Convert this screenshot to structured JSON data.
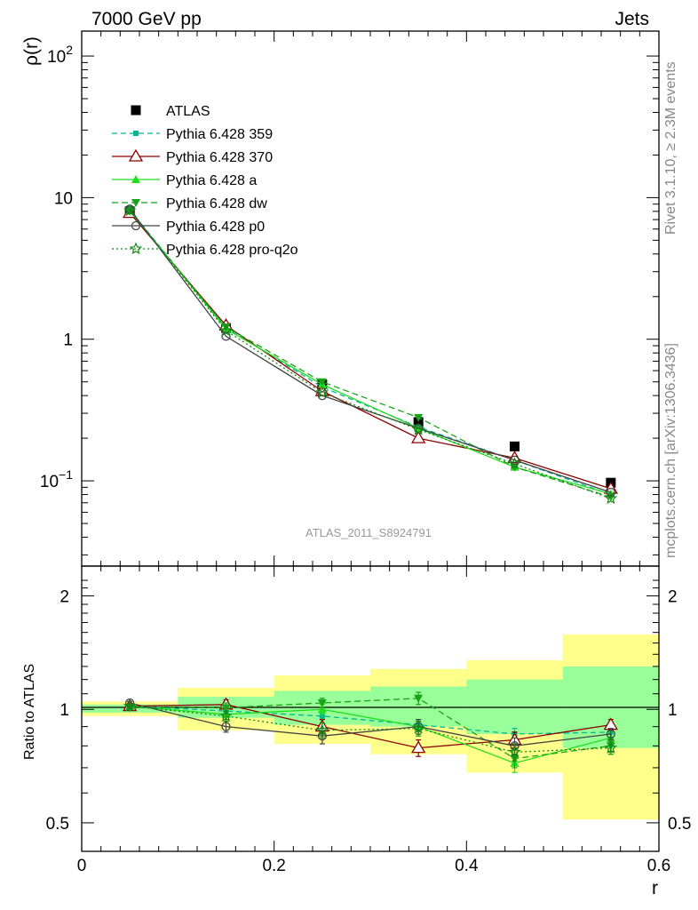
{
  "header": {
    "left": "7000 GeV pp",
    "right": "Jets"
  },
  "side_labels": {
    "rivet": "Rivet 3.1.10, ≥ 2.3M events",
    "mcplots": "mcplots.cern.ch [arXiv:1306.3436]"
  },
  "watermark": "ATLAS_2011_S8924791",
  "colors": {
    "atlas": "#000000",
    "p359": "#00b894",
    "p370": "#8b0000",
    "pa": "#22dd22",
    "pdw": "#1aa31a",
    "pp0": "#444444",
    "pq2o": "#108a10",
    "band_yellow": "#ffff8c",
    "band_green": "#99ff99"
  },
  "chart_data": [
    {
      "type": "line",
      "panel": "main",
      "ylabel": "ρ(r)",
      "yscale": "log",
      "xlim": [
        0,
        0.6
      ],
      "ylim": [
        0.025,
        150
      ],
      "y_ticks": [
        {
          "value": 100,
          "base": "10",
          "exp": "2"
        },
        {
          "value": 10,
          "base": "10",
          "exp": ""
        },
        {
          "value": 1,
          "base": "1",
          "exp": ""
        },
        {
          "value": 0.1,
          "base": "10",
          "exp": "−1"
        }
      ],
      "x": [
        0.05,
        0.15,
        0.25,
        0.35,
        0.45,
        0.55
      ],
      "series": [
        {
          "name": "ATLAS",
          "key": "atlas",
          "values": [
            8.0,
            1.2,
            0.48,
            0.26,
            0.175,
            0.097
          ]
        },
        {
          "name": "Pythia 6.428 359",
          "key": "p359",
          "values": [
            8.2,
            1.2,
            0.46,
            0.24,
            0.14,
            0.08
          ]
        },
        {
          "name": "Pythia 6.428 370",
          "key": "p370",
          "values": [
            7.8,
            1.25,
            0.43,
            0.2,
            0.145,
            0.088
          ]
        },
        {
          "name": "Pythia 6.428 a",
          "key": "pa",
          "values": [
            8.1,
            1.18,
            0.48,
            0.235,
            0.125,
            0.081
          ]
        },
        {
          "name": "Pythia 6.428 dw",
          "key": "pdw",
          "values": [
            8.0,
            1.22,
            0.5,
            0.28,
            0.125,
            0.077
          ]
        },
        {
          "name": "Pythia 6.428 p0",
          "key": "pp0",
          "values": [
            8.3,
            1.05,
            0.4,
            0.235,
            0.14,
            0.083
          ]
        },
        {
          "name": "Pythia 6.428 pro-q2o",
          "key": "pq2o",
          "values": [
            8.1,
            1.15,
            0.42,
            0.23,
            0.132,
            0.075
          ]
        }
      ]
    },
    {
      "type": "line",
      "panel": "ratio",
      "ylabel": "Ratio to ATLAS",
      "yscale": "log",
      "xlabel": "r",
      "xlim": [
        0,
        0.6
      ],
      "ylim": [
        0.42,
        2.4
      ],
      "x_ticks": [
        {
          "value": 0,
          "label": "0"
        },
        {
          "value": 0.2,
          "label": "0.2"
        },
        {
          "value": 0.4,
          "label": "0.4"
        },
        {
          "value": 0.6,
          "label": "0.6"
        }
      ],
      "y_ticks": [
        {
          "value": 2,
          "label": "2"
        },
        {
          "value": 1,
          "label": "1"
        },
        {
          "value": 0.5,
          "label": "0.5"
        }
      ],
      "bins": [
        {
          "lo": 0.0,
          "hi": 0.1,
          "yellow": [
            0.96,
            1.05
          ],
          "green": [
            0.98,
            1.03
          ]
        },
        {
          "lo": 0.1,
          "hi": 0.2,
          "yellow": [
            0.88,
            1.14
          ],
          "green": [
            0.95,
            1.08
          ]
        },
        {
          "lo": 0.2,
          "hi": 0.3,
          "yellow": [
            0.81,
            1.23
          ],
          "green": [
            0.91,
            1.12
          ]
        },
        {
          "lo": 0.3,
          "hi": 0.4,
          "yellow": [
            0.76,
            1.28
          ],
          "green": [
            0.9,
            1.15
          ]
        },
        {
          "lo": 0.4,
          "hi": 0.5,
          "yellow": [
            0.68,
            1.35
          ],
          "green": [
            0.86,
            1.2
          ]
        },
        {
          "lo": 0.5,
          "hi": 0.6,
          "yellow": [
            0.51,
            1.58
          ],
          "green": [
            0.79,
            1.3
          ]
        }
      ],
      "x": [
        0.05,
        0.15,
        0.25,
        0.35,
        0.45,
        0.55
      ],
      "series": [
        {
          "name": "Pythia 6.428 359",
          "key": "p359",
          "values": [
            1.02,
            0.99,
            0.96,
            0.91,
            0.86,
            0.87
          ],
          "err": [
            0.01,
            0.02,
            0.02,
            0.03,
            0.03,
            0.03
          ]
        },
        {
          "name": "Pythia 6.428 370",
          "key": "p370",
          "values": [
            1.02,
            1.03,
            0.9,
            0.79,
            0.83,
            0.91
          ],
          "err": [
            0.01,
            0.03,
            0.04,
            0.04,
            0.04,
            0.03
          ]
        },
        {
          "name": "Pythia 6.428 a",
          "key": "pa",
          "values": [
            1.02,
            0.97,
            1.0,
            0.9,
            0.72,
            0.84
          ],
          "err": [
            0.01,
            0.03,
            0.03,
            0.04,
            0.04,
            0.03
          ]
        },
        {
          "name": "Pythia 6.428 dw",
          "key": "pdw",
          "values": [
            1.01,
            1.01,
            1.04,
            1.07,
            0.74,
            0.8
          ],
          "err": [
            0.01,
            0.03,
            0.03,
            0.04,
            0.04,
            0.03
          ]
        },
        {
          "name": "Pythia 6.428 p0",
          "key": "pp0",
          "values": [
            1.04,
            0.9,
            0.85,
            0.9,
            0.8,
            0.86
          ],
          "err": [
            0.01,
            0.03,
            0.04,
            0.04,
            0.04,
            0.03
          ]
        },
        {
          "name": "Pythia 6.428 pro-q2o",
          "key": "pq2o",
          "values": [
            1.02,
            0.96,
            0.88,
            0.89,
            0.77,
            0.79
          ],
          "err": [
            0.01,
            0.03,
            0.04,
            0.04,
            0.04,
            0.03
          ]
        }
      ]
    }
  ]
}
